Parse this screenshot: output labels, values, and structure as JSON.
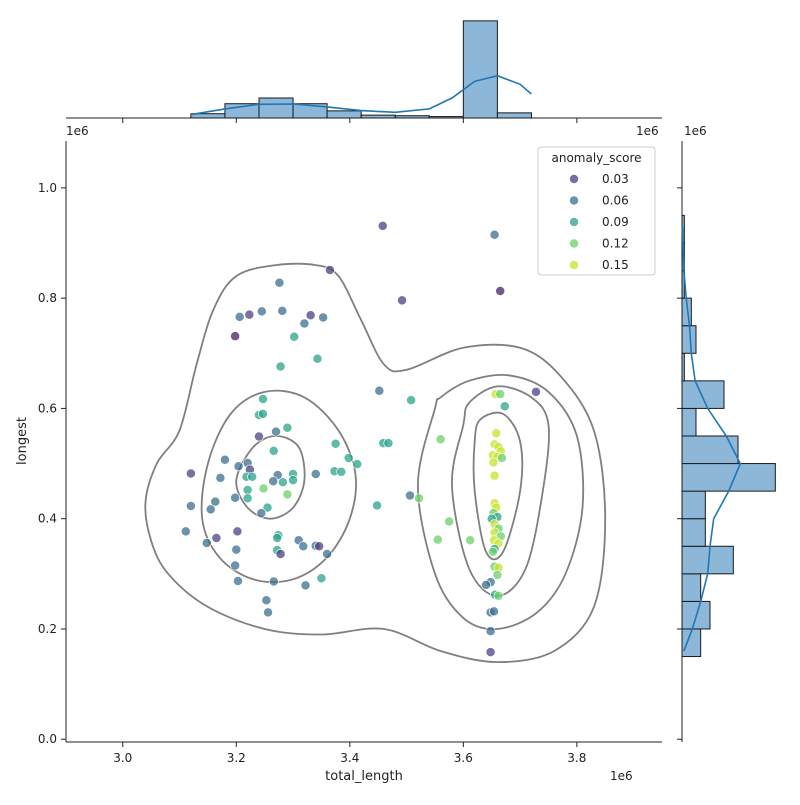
{
  "chart_data": {
    "type": "scatter",
    "title": "",
    "xlabel": "total_length",
    "ylabel": "longest",
    "x_offset_label": "1e6",
    "y_offset_label": "1e6",
    "marg_top_offset_label": "1e6",
    "marg_right_offset_label": "1e6",
    "xlim": [
      2.9,
      3.95
    ],
    "ylim": [
      -0.005,
      1.085
    ],
    "xticks": [
      3.0,
      3.2,
      3.4,
      3.6,
      3.8
    ],
    "yticks": [
      0.0,
      0.2,
      0.4,
      0.6,
      0.8,
      1.0
    ],
    "xtick_labels": [
      "3.0",
      "3.2",
      "3.4",
      "3.6",
      "3.8"
    ],
    "ytick_labels": [
      "0.0",
      "0.2",
      "0.4",
      "0.6",
      "0.8",
      "1.0"
    ],
    "grid": false,
    "legend": {
      "title": "anomaly_score",
      "placement": "top-right",
      "entries": [
        {
          "label": "0.03",
          "color": "#4b3f83"
        },
        {
          "label": "0.06",
          "color": "#3b6d90"
        },
        {
          "label": "0.09",
          "color": "#2aa38a"
        },
        {
          "label": "0.12",
          "color": "#6bd06a"
        },
        {
          "label": "0.15",
          "color": "#c9e22c"
        }
      ]
    },
    "points": [
      {
        "x": 3.458,
        "y": 0.931,
        "c": "#4b3f83"
      },
      {
        "x": 3.655,
        "y": 0.915,
        "c": "#3b6d90"
      },
      {
        "x": 3.365,
        "y": 0.851,
        "c": "#4b3f83"
      },
      {
        "x": 3.276,
        "y": 0.828,
        "c": "#3b6d90"
      },
      {
        "x": 3.665,
        "y": 0.813,
        "c": "#451f6c"
      },
      {
        "x": 3.492,
        "y": 0.796,
        "c": "#4b3f83"
      },
      {
        "x": 3.245,
        "y": 0.776,
        "c": "#3b6d90"
      },
      {
        "x": 3.281,
        "y": 0.777,
        "c": "#3b6d90"
      },
      {
        "x": 3.223,
        "y": 0.77,
        "c": "#4b3f83"
      },
      {
        "x": 3.206,
        "y": 0.766,
        "c": "#3b6d90"
      },
      {
        "x": 3.331,
        "y": 0.769,
        "c": "#4b3f83"
      },
      {
        "x": 3.353,
        "y": 0.765,
        "c": "#3b6d90"
      },
      {
        "x": 3.32,
        "y": 0.754,
        "c": "#3b6d90"
      },
      {
        "x": 3.198,
        "y": 0.731,
        "c": "#451f6c"
      },
      {
        "x": 3.302,
        "y": 0.73,
        "c": "#2aa38a"
      },
      {
        "x": 3.343,
        "y": 0.69,
        "c": "#2aa38a"
      },
      {
        "x": 3.278,
        "y": 0.676,
        "c": "#2aa38a"
      },
      {
        "x": 3.452,
        "y": 0.632,
        "c": "#3b6d90"
      },
      {
        "x": 3.728,
        "y": 0.63,
        "c": "#4b3f83"
      },
      {
        "x": 3.657,
        "y": 0.626,
        "c": "#c9e22c"
      },
      {
        "x": 3.665,
        "y": 0.626,
        "c": "#6bd06a"
      },
      {
        "x": 3.247,
        "y": 0.617,
        "c": "#2aa38a"
      },
      {
        "x": 3.508,
        "y": 0.615,
        "c": "#2aa38a"
      },
      {
        "x": 3.673,
        "y": 0.604,
        "c": "#2aa38a"
      },
      {
        "x": 3.24,
        "y": 0.588,
        "c": "#2aa38a"
      },
      {
        "x": 3.247,
        "y": 0.59,
        "c": "#2aa38a"
      },
      {
        "x": 3.29,
        "y": 0.565,
        "c": "#2aa38a"
      },
      {
        "x": 3.27,
        "y": 0.558,
        "c": "#3b6d90"
      },
      {
        "x": 3.658,
        "y": 0.555,
        "c": "#c9e22c"
      },
      {
        "x": 3.24,
        "y": 0.549,
        "c": "#4b3f83"
      },
      {
        "x": 3.56,
        "y": 0.544,
        "c": "#6bd06a"
      },
      {
        "x": 3.459,
        "y": 0.537,
        "c": "#2aa38a"
      },
      {
        "x": 3.468,
        "y": 0.537,
        "c": "#2aa38a"
      },
      {
        "x": 3.375,
        "y": 0.536,
        "c": "#2aa38a"
      },
      {
        "x": 3.655,
        "y": 0.535,
        "c": "#c9e22c"
      },
      {
        "x": 3.662,
        "y": 0.53,
        "c": "#c9e22c"
      },
      {
        "x": 3.666,
        "y": 0.522,
        "c": "#c9e22c"
      },
      {
        "x": 3.266,
        "y": 0.523,
        "c": "#2aa38a"
      },
      {
        "x": 3.652,
        "y": 0.515,
        "c": "#c9e22c"
      },
      {
        "x": 3.66,
        "y": 0.512,
        "c": "#c9e22c"
      },
      {
        "x": 3.668,
        "y": 0.51,
        "c": "#6bd06a"
      },
      {
        "x": 3.398,
        "y": 0.51,
        "c": "#2aa38a"
      },
      {
        "x": 3.18,
        "y": 0.507,
        "c": "#3b6d90"
      },
      {
        "x": 3.22,
        "y": 0.501,
        "c": "#3b6d90"
      },
      {
        "x": 3.653,
        "y": 0.502,
        "c": "#c9e22c"
      },
      {
        "x": 3.413,
        "y": 0.499,
        "c": "#2aa38a"
      },
      {
        "x": 3.204,
        "y": 0.495,
        "c": "#3b6d90"
      },
      {
        "x": 3.224,
        "y": 0.489,
        "c": "#4b3f83"
      },
      {
        "x": 3.373,
        "y": 0.486,
        "c": "#2aa38a"
      },
      {
        "x": 3.385,
        "y": 0.485,
        "c": "#2aa38a"
      },
      {
        "x": 3.12,
        "y": 0.482,
        "c": "#4b3f83"
      },
      {
        "x": 3.3,
        "y": 0.481,
        "c": "#2aa38a"
      },
      {
        "x": 3.34,
        "y": 0.481,
        "c": "#3b6d90"
      },
      {
        "x": 3.655,
        "y": 0.478,
        "c": "#c9e22c"
      },
      {
        "x": 3.273,
        "y": 0.479,
        "c": "#3b6d90"
      },
      {
        "x": 3.172,
        "y": 0.474,
        "c": "#3b6d90"
      },
      {
        "x": 3.218,
        "y": 0.476,
        "c": "#2aa38a"
      },
      {
        "x": 3.228,
        "y": 0.476,
        "c": "#2aa38a"
      },
      {
        "x": 3.3,
        "y": 0.47,
        "c": "#2aa38a"
      },
      {
        "x": 3.265,
        "y": 0.468,
        "c": "#3b6d90"
      },
      {
        "x": 3.282,
        "y": 0.466,
        "c": "#2aa38a"
      },
      {
        "x": 3.248,
        "y": 0.455,
        "c": "#6bd06a"
      },
      {
        "x": 3.22,
        "y": 0.452,
        "c": "#2aa38a"
      },
      {
        "x": 3.29,
        "y": 0.444,
        "c": "#6bd06a"
      },
      {
        "x": 3.198,
        "y": 0.438,
        "c": "#3b6d90"
      },
      {
        "x": 3.22,
        "y": 0.437,
        "c": "#2aa38a"
      },
      {
        "x": 3.506,
        "y": 0.442,
        "c": "#3b6d90"
      },
      {
        "x": 3.522,
        "y": 0.437,
        "c": "#6bd06a"
      },
      {
        "x": 3.163,
        "y": 0.431,
        "c": "#3b6d90"
      },
      {
        "x": 3.655,
        "y": 0.428,
        "c": "#c9e22c"
      },
      {
        "x": 3.658,
        "y": 0.42,
        "c": "#c9e22c"
      },
      {
        "x": 3.448,
        "y": 0.424,
        "c": "#2aa38a"
      },
      {
        "x": 3.12,
        "y": 0.423,
        "c": "#3b6d90"
      },
      {
        "x": 3.155,
        "y": 0.417,
        "c": "#3b6d90"
      },
      {
        "x": 3.255,
        "y": 0.42,
        "c": "#2aa38a"
      },
      {
        "x": 3.244,
        "y": 0.41,
        "c": "#3b6d90"
      },
      {
        "x": 3.653,
        "y": 0.41,
        "c": "#6bd06a"
      },
      {
        "x": 3.66,
        "y": 0.403,
        "c": "#2aa38a"
      },
      {
        "x": 3.65,
        "y": 0.4,
        "c": "#2aa38a"
      },
      {
        "x": 3.575,
        "y": 0.395,
        "c": "#6bd06a"
      },
      {
        "x": 3.655,
        "y": 0.39,
        "c": "#c9e22c"
      },
      {
        "x": 3.662,
        "y": 0.382,
        "c": "#6bd06a"
      },
      {
        "x": 3.111,
        "y": 0.377,
        "c": "#3b6d90"
      },
      {
        "x": 3.202,
        "y": 0.377,
        "c": "#4b3f83"
      },
      {
        "x": 3.655,
        "y": 0.375,
        "c": "#c9e22c"
      },
      {
        "x": 3.666,
        "y": 0.368,
        "c": "#6bd06a"
      },
      {
        "x": 3.274,
        "y": 0.37,
        "c": "#2aa38a"
      },
      {
        "x": 3.272,
        "y": 0.365,
        "c": "#2aa38a"
      },
      {
        "x": 3.165,
        "y": 0.365,
        "c": "#4b3f83"
      },
      {
        "x": 3.555,
        "y": 0.362,
        "c": "#6bd06a"
      },
      {
        "x": 3.612,
        "y": 0.361,
        "c": "#6bd06a"
      },
      {
        "x": 3.31,
        "y": 0.361,
        "c": "#3b6d90"
      },
      {
        "x": 3.654,
        "y": 0.361,
        "c": "#c9e22c"
      },
      {
        "x": 3.148,
        "y": 0.356,
        "c": "#3b6d90"
      },
      {
        "x": 3.662,
        "y": 0.355,
        "c": "#c9e22c"
      },
      {
        "x": 3.318,
        "y": 0.35,
        "c": "#3b6d90"
      },
      {
        "x": 3.34,
        "y": 0.351,
        "c": "#3b6d90"
      },
      {
        "x": 3.346,
        "y": 0.35,
        "c": "#4b3f83"
      },
      {
        "x": 3.655,
        "y": 0.345,
        "c": "#2aa38a"
      },
      {
        "x": 3.2,
        "y": 0.344,
        "c": "#3b6d90"
      },
      {
        "x": 3.272,
        "y": 0.343,
        "c": "#2aa38a"
      },
      {
        "x": 3.652,
        "y": 0.34,
        "c": "#6bd06a"
      },
      {
        "x": 3.278,
        "y": 0.336,
        "c": "#4b3f83"
      },
      {
        "x": 3.36,
        "y": 0.336,
        "c": "#3b6d90"
      },
      {
        "x": 3.198,
        "y": 0.315,
        "c": "#3b6d90"
      },
      {
        "x": 3.655,
        "y": 0.313,
        "c": "#6bd06a"
      },
      {
        "x": 3.662,
        "y": 0.311,
        "c": "#c9e22c"
      },
      {
        "x": 3.66,
        "y": 0.298,
        "c": "#6bd06a"
      },
      {
        "x": 3.35,
        "y": 0.292,
        "c": "#2aa38a"
      },
      {
        "x": 3.203,
        "y": 0.287,
        "c": "#3b6d90"
      },
      {
        "x": 3.266,
        "y": 0.286,
        "c": "#3b6d90"
      },
      {
        "x": 3.648,
        "y": 0.285,
        "c": "#3b6d90"
      },
      {
        "x": 3.64,
        "y": 0.28,
        "c": "#3b6d90"
      },
      {
        "x": 3.322,
        "y": 0.279,
        "c": "#3b6d90"
      },
      {
        "x": 3.656,
        "y": 0.262,
        "c": "#2aa38a"
      },
      {
        "x": 3.662,
        "y": 0.26,
        "c": "#6bd06a"
      },
      {
        "x": 3.253,
        "y": 0.252,
        "c": "#3b6d90"
      },
      {
        "x": 3.648,
        "y": 0.23,
        "c": "#3b6d90"
      },
      {
        "x": 3.654,
        "y": 0.232,
        "c": "#3b6d90"
      },
      {
        "x": 3.256,
        "y": 0.23,
        "c": "#3b6d90"
      },
      {
        "x": 3.648,
        "y": 0.196,
        "c": "#3b6d90"
      },
      {
        "x": 3.648,
        "y": 0.158,
        "c": "#4b3f83"
      }
    ],
    "kde_contours": [
      {
        "x": [
          3.1,
          3.06,
          3.04,
          3.05,
          3.08,
          3.15,
          3.25,
          3.35,
          3.46,
          3.56,
          3.66,
          3.76,
          3.83,
          3.85,
          3.83,
          3.77,
          3.7,
          3.6,
          3.5,
          3.46,
          3.42,
          3.38,
          3.34,
          3.27,
          3.2,
          3.16,
          3.13,
          3.1
        ],
        "y": [
          0.56,
          0.5,
          0.43,
          0.36,
          0.3,
          0.24,
          0.2,
          0.19,
          0.2,
          0.16,
          0.14,
          0.16,
          0.24,
          0.4,
          0.56,
          0.66,
          0.71,
          0.71,
          0.67,
          0.68,
          0.76,
          0.84,
          0.86,
          0.86,
          0.84,
          0.78,
          0.68,
          0.56
        ]
      },
      {
        "x": [
          3.15,
          3.14,
          3.17,
          3.23,
          3.3,
          3.36,
          3.4,
          3.41,
          3.38,
          3.32,
          3.25,
          3.19,
          3.15
        ],
        "y": [
          0.5,
          0.4,
          0.33,
          0.29,
          0.29,
          0.33,
          0.4,
          0.48,
          0.56,
          0.62,
          0.63,
          0.59,
          0.5
        ]
      },
      {
        "x": [
          3.2,
          3.22,
          3.26,
          3.3,
          3.32,
          3.31,
          3.27,
          3.23,
          3.2
        ],
        "y": [
          0.47,
          0.42,
          0.4,
          0.42,
          0.47,
          0.53,
          0.55,
          0.53,
          0.47
        ]
      },
      {
        "x": [
          3.55,
          3.52,
          3.55,
          3.6,
          3.66,
          3.73,
          3.78,
          3.81,
          3.8,
          3.75,
          3.68,
          3.61,
          3.56,
          3.55
        ],
        "y": [
          0.6,
          0.46,
          0.3,
          0.22,
          0.2,
          0.23,
          0.3,
          0.42,
          0.55,
          0.63,
          0.66,
          0.65,
          0.62,
          0.6
        ]
      },
      {
        "x": [
          3.6,
          3.58,
          3.61,
          3.66,
          3.71,
          3.74,
          3.75,
          3.72,
          3.66,
          3.61,
          3.6
        ],
        "y": [
          0.57,
          0.46,
          0.31,
          0.26,
          0.31,
          0.45,
          0.57,
          0.62,
          0.64,
          0.61,
          0.57
        ]
      },
      {
        "x": [
          3.62,
          3.62,
          3.64,
          3.67,
          3.7,
          3.7,
          3.67,
          3.63,
          3.62
        ],
        "y": [
          0.54,
          0.45,
          0.34,
          0.34,
          0.45,
          0.54,
          0.59,
          0.58,
          0.54
        ]
      }
    ],
    "top_hist": {
      "bins": [
        3.12,
        3.18,
        3.24,
        3.3,
        3.36,
        3.42,
        3.48,
        3.54,
        3.6,
        3.66,
        3.72
      ],
      "counts": [
        1.5,
        5,
        7,
        5,
        2.5,
        1,
        0.8,
        0.5,
        34,
        1.8
      ],
      "kde_x": [
        3.12,
        3.18,
        3.24,
        3.3,
        3.36,
        3.42,
        3.48,
        3.54,
        3.58,
        3.62,
        3.66,
        3.7,
        3.72
      ],
      "kde_y": [
        1.2,
        3.2,
        4.8,
        4.9,
        3.9,
        2.6,
        2.0,
        3.2,
        7.0,
        12.8,
        14.8,
        11.8,
        8.4
      ],
      "ymax": 35
    },
    "right_hist": {
      "bins": [
        0.15,
        0.2,
        0.25,
        0.3,
        0.35,
        0.4,
        0.45,
        0.5,
        0.55,
        0.6,
        0.65,
        0.7,
        0.75,
        0.8,
        0.85,
        0.9,
        0.95
      ],
      "counts": [
        4,
        6,
        4,
        11,
        5,
        5,
        20,
        12,
        3,
        9,
        0.5,
        3,
        2,
        0.5,
        0.5,
        0.5
      ],
      "kde_y": [
        0.16,
        0.2,
        0.25,
        0.3,
        0.35,
        0.4,
        0.45,
        0.5,
        0.55,
        0.6,
        0.65,
        0.7,
        0.75,
        0.8,
        0.85,
        0.9,
        0.93
      ],
      "kde_x": [
        0.4,
        2.2,
        4.0,
        5.5,
        6.0,
        6.8,
        10.0,
        12.5,
        9.5,
        5.5,
        2.8,
        2.0,
        1.6,
        0.9,
        0.4,
        0.2,
        0.1
      ],
      "xmax": 21
    }
  },
  "colors": {
    "hist_fill": "#8db7d9",
    "hist_edge": "#1a1a1a",
    "kde_line": "#1f77b4",
    "contour": "#7f7f7f",
    "axis": "#222222"
  }
}
